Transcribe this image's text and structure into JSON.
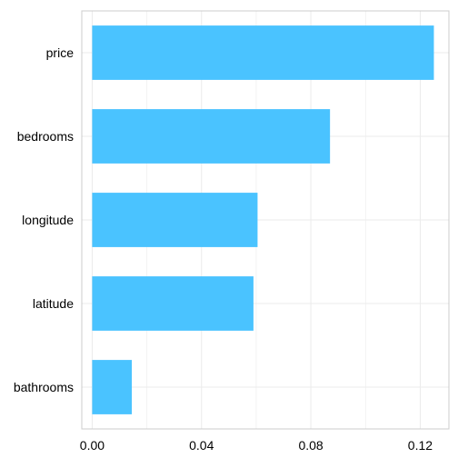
{
  "chart_data": {
    "type": "bar",
    "orientation": "horizontal",
    "categories": [
      "price",
      "bedrooms",
      "longitude",
      "latitude",
      "bathrooms"
    ],
    "values": [
      0.125,
      0.087,
      0.0605,
      0.059,
      0.0145
    ],
    "xlim": [
      -0.0038,
      0.1305
    ],
    "xticks": [
      0.0,
      0.04,
      0.08,
      0.12
    ],
    "xtick_labels": [
      "0.00",
      "0.04",
      "0.08",
      "0.12"
    ],
    "title": "",
    "xlabel": "",
    "ylabel": "",
    "grid": true,
    "legend": "none",
    "colors": {
      "bar": "#4ac3ff",
      "grid": "#ebebeb",
      "panel_border": "#cccccc"
    }
  }
}
